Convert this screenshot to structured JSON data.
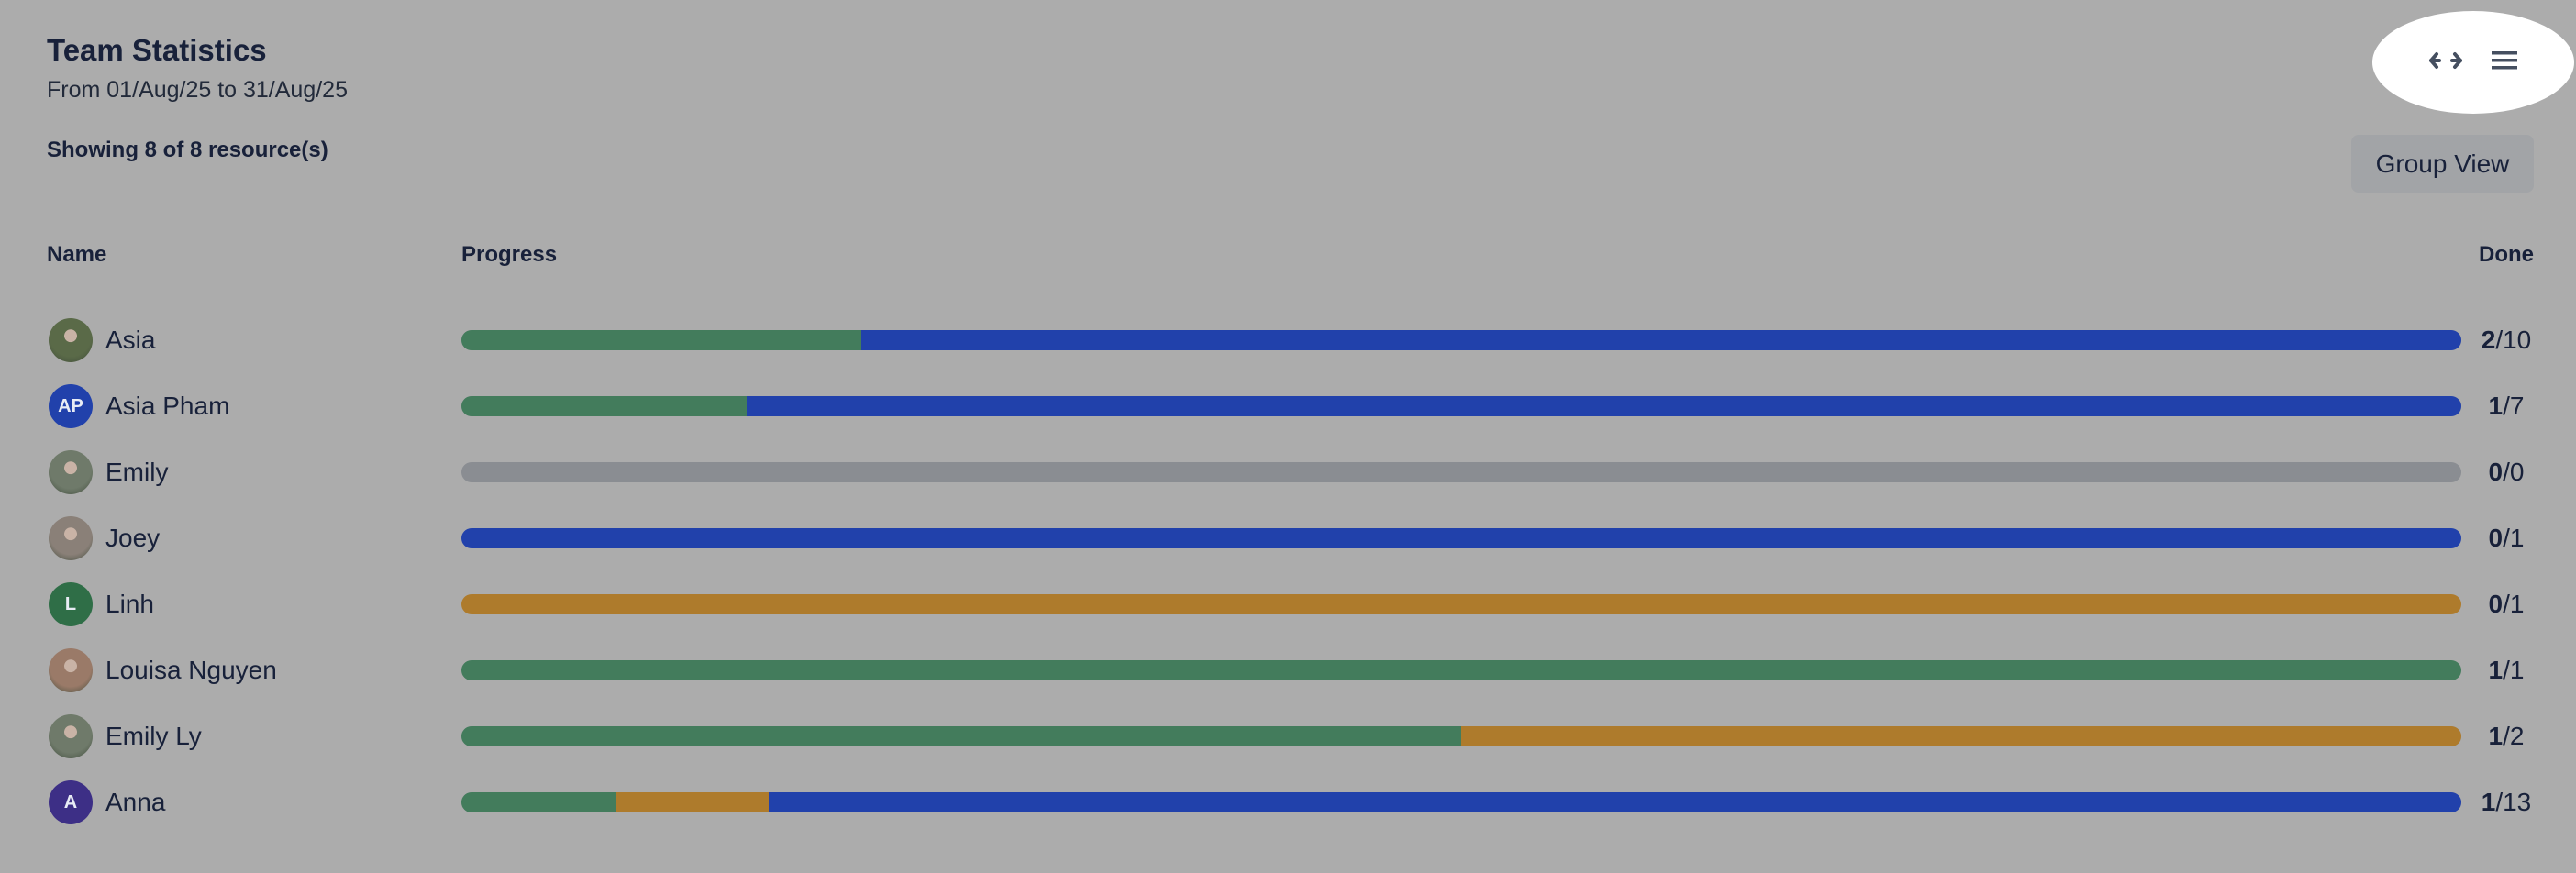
{
  "header": {
    "title": "Team Statistics",
    "subtitle": "From 01/Aug/25 to 31/Aug/25",
    "showing": "Showing 8 of 8 resource(s)"
  },
  "toolbar": {
    "expand_icon": "arrows-left-right-icon",
    "menu_icon": "hamburger-menu-icon",
    "group_view_label": "Group View"
  },
  "table": {
    "columns": {
      "name": "Name",
      "progress": "Progress",
      "done": "Done"
    },
    "colors": {
      "done": "#437c5c",
      "in_progress": "#ae7b2c",
      "todo": "#2141ab",
      "empty": "#8a8d92"
    },
    "rows": [
      {
        "name": "Asia",
        "avatar": {
          "type": "photo",
          "color": "#5a6a48"
        },
        "done": "2",
        "total": "10",
        "segments": [
          {
            "status": "done",
            "count": 2
          },
          {
            "status": "todo",
            "count": 8
          }
        ]
      },
      {
        "name": "Asia Pham",
        "avatar": {
          "type": "initials",
          "initials": "AP",
          "color": "#2141ab"
        },
        "done": "1",
        "total": "7",
        "segments": [
          {
            "status": "done",
            "count": 1
          },
          {
            "status": "todo",
            "count": 6
          }
        ]
      },
      {
        "name": "Emily",
        "avatar": {
          "type": "photo",
          "color": "#6f7a6a"
        },
        "done": "0",
        "total": "0",
        "segments": []
      },
      {
        "name": "Joey",
        "avatar": {
          "type": "photo",
          "color": "#8a8078"
        },
        "done": "0",
        "total": "1",
        "segments": [
          {
            "status": "todo",
            "count": 1
          }
        ]
      },
      {
        "name": "Linh",
        "avatar": {
          "type": "initials",
          "initials": "L",
          "color": "#2f6e47"
        },
        "done": "0",
        "total": "1",
        "segments": [
          {
            "status": "in_progress",
            "count": 1
          }
        ]
      },
      {
        "name": "Louisa Nguyen",
        "avatar": {
          "type": "photo",
          "color": "#9a7a68"
        },
        "done": "1",
        "total": "1",
        "segments": [
          {
            "status": "done",
            "count": 1
          }
        ]
      },
      {
        "name": "Emily Ly",
        "avatar": {
          "type": "photo",
          "color": "#6f7a6a"
        },
        "done": "1",
        "total": "2",
        "segments": [
          {
            "status": "done",
            "count": 1
          },
          {
            "status": "in_progress",
            "count": 1
          }
        ]
      },
      {
        "name": "Anna",
        "avatar": {
          "type": "initials",
          "initials": "A",
          "color": "#3d2f86"
        },
        "done": "1",
        "total": "13",
        "segments": [
          {
            "status": "done",
            "count": 1
          },
          {
            "status": "in_progress",
            "count": 1
          },
          {
            "status": "todo",
            "count": 11
          }
        ]
      }
    ]
  }
}
